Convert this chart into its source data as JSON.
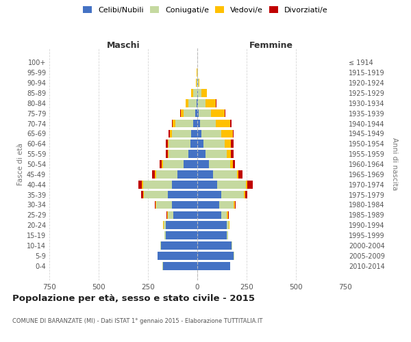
{
  "age_groups": [
    "0-4",
    "5-9",
    "10-14",
    "15-19",
    "20-24",
    "25-29",
    "30-34",
    "35-39",
    "40-44",
    "45-49",
    "50-54",
    "55-59",
    "60-64",
    "65-69",
    "70-74",
    "75-79",
    "80-84",
    "85-89",
    "90-94",
    "95-99",
    "100+"
  ],
  "birth_years": [
    "2010-2014",
    "2005-2009",
    "2000-2004",
    "1995-1999",
    "1990-1994",
    "1985-1989",
    "1980-1984",
    "1975-1979",
    "1970-1974",
    "1965-1969",
    "1960-1964",
    "1955-1959",
    "1950-1954",
    "1945-1949",
    "1940-1944",
    "1935-1939",
    "1930-1934",
    "1925-1929",
    "1920-1924",
    "1915-1919",
    "≤ 1914"
  ],
  "male": {
    "celibi": [
      175,
      200,
      185,
      160,
      160,
      120,
      130,
      150,
      130,
      100,
      70,
      45,
      35,
      30,
      20,
      10,
      5,
      0,
      0,
      0,
      0
    ],
    "coniugati": [
      2,
      2,
      2,
      5,
      10,
      30,
      80,
      120,
      145,
      110,
      105,
      100,
      110,
      100,
      90,
      60,
      40,
      20,
      5,
      1,
      0
    ],
    "vedovi": [
      0,
      0,
      0,
      0,
      2,
      2,
      2,
      5,
      5,
      5,
      5,
      5,
      5,
      10,
      15,
      15,
      15,
      10,
      3,
      1,
      0
    ],
    "divorziati": [
      0,
      0,
      0,
      0,
      2,
      5,
      5,
      10,
      20,
      15,
      10,
      10,
      10,
      5,
      5,
      2,
      0,
      0,
      0,
      0,
      0
    ]
  },
  "female": {
    "nubili": [
      165,
      185,
      175,
      150,
      150,
      120,
      110,
      120,
      100,
      80,
      60,
      40,
      30,
      20,
      15,
      8,
      5,
      2,
      2,
      0,
      0
    ],
    "coniugate": [
      2,
      2,
      2,
      5,
      10,
      30,
      75,
      115,
      145,
      120,
      105,
      110,
      110,
      100,
      80,
      60,
      35,
      20,
      5,
      2,
      0
    ],
    "vedove": [
      0,
      0,
      0,
      2,
      2,
      5,
      5,
      8,
      10,
      10,
      15,
      20,
      30,
      60,
      70,
      70,
      55,
      25,
      5,
      2,
      0
    ],
    "divorziate": [
      0,
      0,
      0,
      0,
      2,
      5,
      5,
      10,
      25,
      20,
      10,
      15,
      15,
      5,
      10,
      5,
      2,
      2,
      0,
      0,
      0
    ]
  },
  "colors": {
    "celibi": "#4472c4",
    "coniugati": "#c5d9a0",
    "vedovi": "#ffc000",
    "divorziati": "#c00000"
  },
  "title": "Popolazione per età, sesso e stato civile - 2015",
  "subtitle": "COMUNE DI BARANZATE (MI) - Dati ISTAT 1° gennaio 2015 - Elaborazione TUTTITALIA.IT",
  "ylabel_left": "Fasce di età",
  "ylabel_right": "Anni di nascita",
  "xlim": 750,
  "background_color": "#ffffff",
  "grid_color": "#cccccc",
  "maschi_label": "Maschi",
  "femmine_label": "Femmine",
  "legend_labels": [
    "Celibi/Nubili",
    "Coniugati/e",
    "Vedovi/e",
    "Divorziati/e"
  ]
}
